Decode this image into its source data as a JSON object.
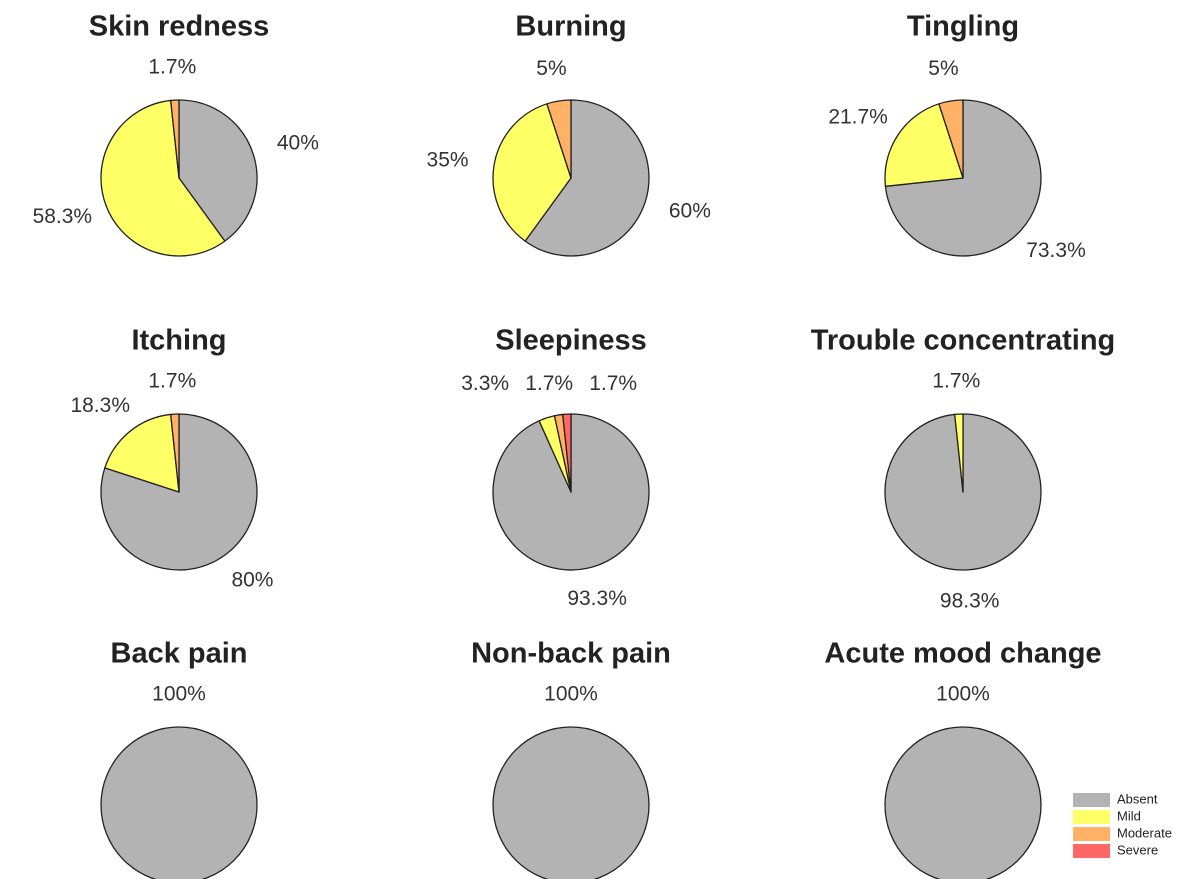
{
  "chart_data": [
    {
      "type": "pie",
      "title": "Skin redness",
      "values": [
        40,
        58.3,
        1.7
      ],
      "value_labels": [
        "40%",
        "58.3%",
        "1.7%"
      ],
      "colors": [
        "#b3b3b3",
        "#ffff66",
        "#ffb266"
      ]
    },
    {
      "type": "pie",
      "title": "Burning",
      "values": [
        60,
        35,
        5
      ],
      "value_labels": [
        "60%",
        "35%",
        "5%"
      ],
      "colors": [
        "#b3b3b3",
        "#ffff66",
        "#ffb266"
      ]
    },
    {
      "type": "pie",
      "title": "Tingling",
      "values": [
        73.3,
        21.7,
        5
      ],
      "value_labels": [
        "73.3%",
        "21.7%",
        "5%"
      ],
      "colors": [
        "#b3b3b3",
        "#ffff66",
        "#ffb266"
      ]
    },
    {
      "type": "pie",
      "title": "Itching",
      "values": [
        80,
        18.3,
        1.7
      ],
      "value_labels": [
        "80%",
        "18.3%",
        "1.7%"
      ],
      "colors": [
        "#b3b3b3",
        "#ffff66",
        "#ffb266"
      ]
    },
    {
      "type": "pie",
      "title": "Sleepiness",
      "values": [
        93.3,
        3.3,
        1.7,
        1.7
      ],
      "value_labels": [
        "93.3%",
        "3.3%",
        "1.7%",
        "1.7%"
      ],
      "colors": [
        "#b3b3b3",
        "#ffff66",
        "#ffb266",
        "#ff6666"
      ]
    },
    {
      "type": "pie",
      "title": "Trouble concentrating",
      "values": [
        98.3,
        1.7
      ],
      "value_labels": [
        "98.3%",
        "1.7%"
      ],
      "colors": [
        "#b3b3b3",
        "#ffff66"
      ]
    },
    {
      "type": "pie",
      "title": "Back pain",
      "values": [
        100
      ],
      "value_labels": [
        "100%"
      ],
      "colors": [
        "#b3b3b3"
      ]
    },
    {
      "type": "pie",
      "title": "Non-back pain",
      "values": [
        100
      ],
      "value_labels": [
        "100%"
      ],
      "colors": [
        "#b3b3b3"
      ]
    },
    {
      "type": "pie",
      "title": "Acute mood change",
      "values": [
        100
      ],
      "value_labels": [
        "100%"
      ],
      "colors": [
        "#b3b3b3"
      ]
    }
  ],
  "legend": {
    "labels": [
      "Absent",
      "Mild",
      "Moderate",
      "Severe"
    ],
    "colors": [
      "#b3b3b3",
      "#ffff66",
      "#ffb266",
      "#ff6666"
    ]
  }
}
